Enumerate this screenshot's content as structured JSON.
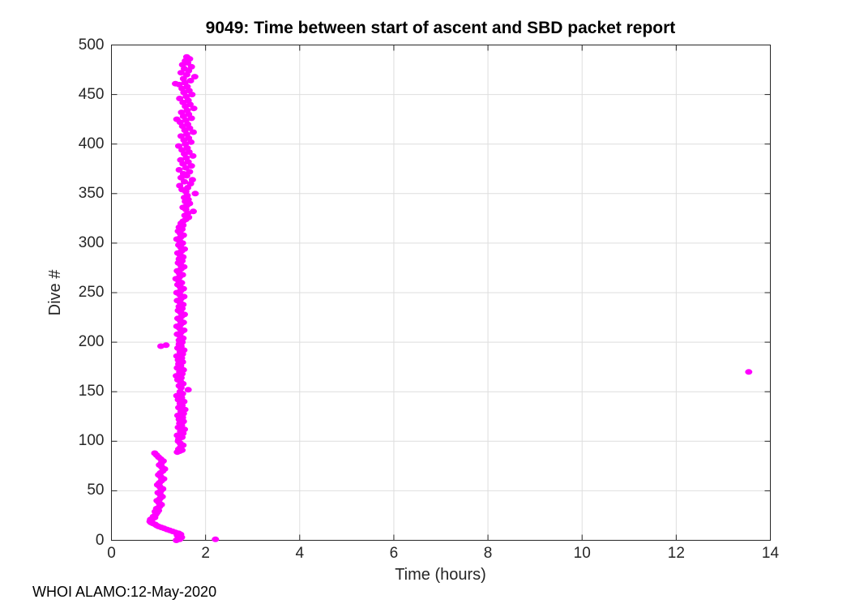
{
  "figure": {
    "credit": "WHOI ALAMO:12-May-2020"
  },
  "chart_data": {
    "type": "scatter",
    "title": "9049: Time between start of ascent and SBD packet report",
    "xlabel": "Time (hours)",
    "ylabel": "Dive #",
    "xlim": [
      0,
      14
    ],
    "ylim": [
      0,
      500
    ],
    "xticks": [
      0,
      2,
      4,
      6,
      8,
      10,
      12,
      14
    ],
    "yticks": [
      0,
      50,
      100,
      150,
      200,
      250,
      300,
      350,
      400,
      450,
      500
    ],
    "grid": true,
    "legend": "none",
    "marker": {
      "shape": "filled-dot",
      "color": "#FF00FF",
      "rx": 4.5,
      "ry": 3.5
    },
    "axis_color": "#262626",
    "grid_color": "#DEDEDE",
    "background": "#ffffff",
    "point_format": "[time_hours, dive_number]",
    "notable_points": {
      "outlier": [
        13.54,
        170
      ],
      "isolated_low": [
        2.21,
        1
      ],
      "left_offshoot": [
        [
          1.05,
          196
        ],
        [
          1.16,
          197
        ]
      ]
    },
    "series": [
      {
        "name": "ascent_to_sbd_report_time",
        "points": [
          [
            2.21,
            1
          ],
          [
            1.38,
            0
          ],
          [
            1.45,
            1
          ],
          [
            1.42,
            2
          ],
          [
            1.49,
            3
          ],
          [
            1.44,
            4
          ],
          [
            1.4,
            5
          ],
          [
            1.47,
            6
          ],
          [
            1.43,
            7
          ],
          [
            1.36,
            8
          ],
          [
            1.3,
            9
          ],
          [
            1.24,
            10
          ],
          [
            1.18,
            11
          ],
          [
            1.12,
            12
          ],
          [
            1.06,
            13
          ],
          [
            1.0,
            14
          ],
          [
            0.96,
            15
          ],
          [
            0.93,
            16
          ],
          [
            0.88,
            17
          ],
          [
            0.84,
            18
          ],
          [
            0.82,
            19
          ],
          [
            0.85,
            20
          ],
          [
            0.83,
            21
          ],
          [
            0.87,
            22
          ],
          [
            0.92,
            23
          ],
          [
            0.89,
            24
          ],
          [
            0.94,
            26
          ],
          [
            0.97,
            28
          ],
          [
            0.93,
            29
          ],
          [
            1.0,
            30
          ],
          [
            0.96,
            32
          ],
          [
            1.02,
            34
          ],
          [
            1.06,
            36
          ],
          [
            1.01,
            38
          ],
          [
            0.97,
            40
          ],
          [
            1.03,
            42
          ],
          [
            1.08,
            44
          ],
          [
            1.04,
            46
          ],
          [
            0.99,
            48
          ],
          [
            1.05,
            50
          ],
          [
            1.09,
            52
          ],
          [
            1.03,
            54
          ],
          [
            0.98,
            56
          ],
          [
            1.02,
            58
          ],
          [
            1.06,
            60
          ],
          [
            1.11,
            62
          ],
          [
            1.05,
            64
          ],
          [
            1.0,
            66
          ],
          [
            1.04,
            68
          ],
          [
            1.09,
            70
          ],
          [
            1.13,
            72
          ],
          [
            1.07,
            74
          ],
          [
            1.02,
            76
          ],
          [
            1.06,
            78
          ],
          [
            1.1,
            80
          ],
          [
            1.05,
            82
          ],
          [
            1.0,
            84
          ],
          [
            0.96,
            86
          ],
          [
            0.92,
            88
          ],
          [
            1.4,
            89
          ],
          [
            1.45,
            90
          ],
          [
            1.5,
            91
          ],
          [
            1.43,
            92
          ],
          [
            1.47,
            94
          ],
          [
            1.52,
            96
          ],
          [
            1.46,
            98
          ],
          [
            1.42,
            100
          ],
          [
            1.43,
            102
          ],
          [
            1.5,
            104
          ],
          [
            1.4,
            106
          ],
          [
            1.52,
            108
          ],
          [
            1.47,
            110
          ],
          [
            1.55,
            112
          ],
          [
            1.42,
            114
          ],
          [
            1.49,
            116
          ],
          [
            1.45,
            118
          ],
          [
            1.53,
            120
          ],
          [
            1.44,
            122
          ],
          [
            1.51,
            124
          ],
          [
            1.41,
            126
          ],
          [
            1.53,
            128
          ],
          [
            1.48,
            130
          ],
          [
            1.56,
            132
          ],
          [
            1.43,
            134
          ],
          [
            1.5,
            136
          ],
          [
            1.46,
            138
          ],
          [
            1.54,
            140
          ],
          [
            1.42,
            142
          ],
          [
            1.49,
            144
          ],
          [
            1.39,
            146
          ],
          [
            1.51,
            148
          ],
          [
            1.46,
            150
          ],
          [
            1.63,
            152
          ],
          [
            1.48,
            154
          ],
          [
            1.44,
            156
          ],
          [
            1.52,
            158
          ],
          [
            1.47,
            160
          ],
          [
            1.41,
            162
          ],
          [
            1.48,
            164
          ],
          [
            1.38,
            166
          ],
          [
            1.5,
            168
          ],
          [
            1.45,
            170
          ],
          [
            1.53,
            172
          ],
          [
            1.4,
            174
          ],
          [
            1.47,
            176
          ],
          [
            1.43,
            178
          ],
          [
            1.51,
            180
          ],
          [
            1.42,
            182
          ],
          [
            1.49,
            184
          ],
          [
            1.39,
            186
          ],
          [
            1.51,
            188
          ],
          [
            1.46,
            190
          ],
          [
            1.54,
            192
          ],
          [
            1.41,
            194
          ],
          [
            1.48,
            196
          ],
          [
            1.44,
            198
          ],
          [
            1.05,
            196
          ],
          [
            1.16,
            197
          ],
          [
            13.54,
            170
          ],
          [
            1.5,
            200
          ],
          [
            1.44,
            202
          ],
          [
            1.52,
            204
          ],
          [
            1.46,
            206
          ],
          [
            1.4,
            208
          ],
          [
            1.48,
            210
          ],
          [
            1.54,
            212
          ],
          [
            1.45,
            214
          ],
          [
            1.39,
            216
          ],
          [
            1.47,
            218
          ],
          [
            1.53,
            220
          ],
          [
            1.46,
            222
          ],
          [
            1.41,
            224
          ],
          [
            1.49,
            226
          ],
          [
            1.55,
            228
          ],
          [
            1.47,
            230
          ],
          [
            1.42,
            232
          ],
          [
            1.5,
            234
          ],
          [
            1.44,
            236
          ],
          [
            1.52,
            238
          ],
          [
            1.46,
            240
          ],
          [
            1.4,
            242
          ],
          [
            1.48,
            244
          ],
          [
            1.54,
            246
          ],
          [
            1.45,
            248
          ],
          [
            1.39,
            250
          ],
          [
            1.47,
            252
          ],
          [
            1.53,
            254
          ],
          [
            1.46,
            256
          ],
          [
            1.41,
            258
          ],
          [
            1.49,
            260
          ],
          [
            1.43,
            262
          ],
          [
            1.37,
            264
          ],
          [
            1.45,
            266
          ],
          [
            1.51,
            268
          ],
          [
            1.44,
            270
          ],
          [
            1.4,
            272
          ],
          [
            1.48,
            274
          ],
          [
            1.54,
            276
          ],
          [
            1.47,
            278
          ],
          [
            1.42,
            280
          ],
          [
            1.5,
            282
          ],
          [
            1.44,
            284
          ],
          [
            1.52,
            286
          ],
          [
            1.46,
            288
          ],
          [
            1.41,
            290
          ],
          [
            1.49,
            292
          ],
          [
            1.55,
            294
          ],
          [
            1.47,
            296
          ],
          [
            1.43,
            298
          ],
          [
            1.51,
            300
          ],
          [
            1.45,
            302
          ],
          [
            1.39,
            304
          ],
          [
            1.47,
            306
          ],
          [
            1.53,
            308
          ],
          [
            1.46,
            310
          ],
          [
            1.42,
            312
          ],
          [
            1.5,
            314
          ],
          [
            1.44,
            316
          ],
          [
            1.52,
            318
          ],
          [
            1.48,
            320
          ],
          [
            1.52,
            322
          ],
          [
            1.58,
            324
          ],
          [
            1.64,
            326
          ],
          [
            1.56,
            328
          ],
          [
            1.62,
            330
          ],
          [
            1.74,
            332
          ],
          [
            1.58,
            334
          ],
          [
            1.52,
            336
          ],
          [
            1.6,
            338
          ],
          [
            1.66,
            340
          ],
          [
            1.57,
            342
          ],
          [
            1.63,
            344
          ],
          [
            1.55,
            346
          ],
          [
            1.61,
            348
          ],
          [
            1.78,
            350
          ],
          [
            1.58,
            352
          ],
          [
            1.5,
            354
          ],
          [
            1.62,
            356
          ],
          [
            1.45,
            358
          ],
          [
            1.68,
            360
          ],
          [
            1.55,
            362
          ],
          [
            1.72,
            364
          ],
          [
            1.48,
            366
          ],
          [
            1.6,
            368
          ],
          [
            1.53,
            370
          ],
          [
            1.66,
            372
          ],
          [
            1.44,
            374
          ],
          [
            1.58,
            376
          ],
          [
            1.7,
            378
          ],
          [
            1.52,
            380
          ],
          [
            1.63,
            382
          ],
          [
            1.47,
            384
          ],
          [
            1.59,
            386
          ],
          [
            1.73,
            388
          ],
          [
            1.55,
            390
          ],
          [
            1.65,
            392
          ],
          [
            1.5,
            394
          ],
          [
            1.61,
            396
          ],
          [
            1.43,
            398
          ],
          [
            1.57,
            400
          ],
          [
            1.69,
            402
          ],
          [
            1.54,
            404
          ],
          [
            1.64,
            406
          ],
          [
            1.48,
            408
          ],
          [
            1.6,
            410
          ],
          [
            1.74,
            412
          ],
          [
            1.56,
            414
          ],
          [
            1.66,
            416
          ],
          [
            1.51,
            418
          ],
          [
            1.62,
            420
          ],
          [
            1.46,
            422
          ],
          [
            1.58,
            424
          ],
          [
            1.39,
            425
          ],
          [
            1.7,
            426
          ],
          [
            1.53,
            428
          ],
          [
            1.64,
            430
          ],
          [
            1.49,
            432
          ],
          [
            1.61,
            434
          ],
          [
            1.75,
            436
          ],
          [
            1.57,
            438
          ],
          [
            1.67,
            440
          ],
          [
            1.52,
            442
          ],
          [
            1.63,
            444
          ],
          [
            1.45,
            446
          ],
          [
            1.59,
            448
          ],
          [
            1.71,
            450
          ],
          [
            1.54,
            452
          ],
          [
            1.65,
            454
          ],
          [
            1.5,
            456
          ],
          [
            1.61,
            458
          ],
          [
            1.44,
            460
          ],
          [
            1.36,
            461
          ],
          [
            1.56,
            462
          ],
          [
            1.68,
            464
          ],
          [
            1.53,
            466
          ],
          [
            1.77,
            468
          ],
          [
            1.6,
            470
          ],
          [
            1.48,
            472
          ],
          [
            1.64,
            474
          ],
          [
            1.55,
            476
          ],
          [
            1.7,
            478
          ],
          [
            1.51,
            480
          ],
          [
            1.62,
            482
          ],
          [
            1.57,
            484
          ],
          [
            1.66,
            486
          ],
          [
            1.6,
            488
          ]
        ]
      }
    ]
  }
}
